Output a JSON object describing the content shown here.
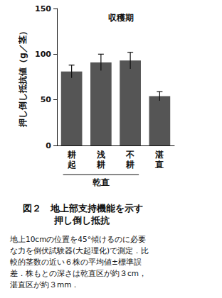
{
  "chart_data": {
    "type": "bar",
    "title": "収穫期",
    "y_label": "押し倒し抵抗値（g／茎）",
    "categories": [
      "耕起",
      "浅耕",
      "不耕",
      "湛直"
    ],
    "values": [
      81,
      91,
      93,
      54
    ],
    "errors": [
      7,
      9,
      9,
      5
    ],
    "color": "#555555",
    "ylim": [
      0,
      150
    ],
    "yticks": [
      0,
      50,
      100,
      150
    ],
    "grid": false,
    "annotations": [
      {
        "text": "乾直",
        "categories": [
          "耕起",
          "浅耕",
          "不耕"
        ]
      }
    ]
  },
  "caption": {
    "title_lines": [
      "図２　地上部支持機能を示す",
      "押し倒し抵抗"
    ],
    "note_lines": [
      "地上10cmの位置を45°傾けるのに必要",
      "な力を倒伏試験器(大起理化)で測定．比",
      "較的茎数の近い６株の平均値±標準誤",
      "差．株もとの深さは乾直区が約３cm，",
      "湛直区が約３mm．"
    ]
  }
}
